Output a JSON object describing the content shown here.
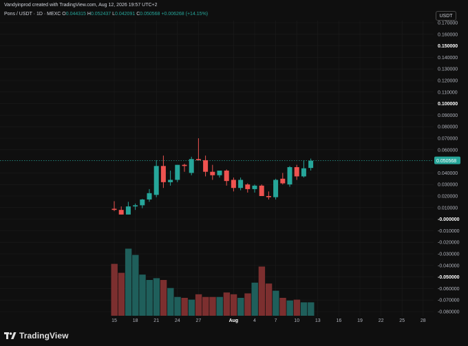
{
  "header": {
    "attribution": "Vandyinprod created with TradingView.com, Aug 12, 2026 19:57 UTC+2"
  },
  "legend": {
    "symbol": "Pons / USDT · 1D · MEXC",
    "o_label": "O",
    "o_value": "0.044315",
    "h_label": "H",
    "h_value": "0.052437",
    "l_label": "L",
    "l_value": "0.042091",
    "c_label": "C",
    "c_value": "0.050568",
    "change": "+0.006268 (+14.15%)"
  },
  "currency": "USDT",
  "colors": {
    "background": "#0f0f0f",
    "up": "#26a69a",
    "down": "#ef5350",
    "vol_up": "#1f5f5b",
    "vol_down": "#7c2f2f",
    "grid": "#1c1c1c",
    "price_line": "#26a69a",
    "axis_text": "#b2b5be"
  },
  "brand": {
    "name": "TradingView",
    "icon": "tradingview-logo-icon"
  },
  "chart_data": {
    "type": "candlestick",
    "ylim": [
      -0.08,
      0.17
    ],
    "y_ticks": [
      {
        "value": 0.17,
        "label": "0.170000",
        "bold": false
      },
      {
        "value": 0.16,
        "label": "0.160000",
        "bold": false
      },
      {
        "value": 0.15,
        "label": "0.150000",
        "bold": true
      },
      {
        "value": 0.14,
        "label": "0.140000",
        "bold": false
      },
      {
        "value": 0.13,
        "label": "0.130000",
        "bold": false
      },
      {
        "value": 0.12,
        "label": "0.120000",
        "bold": false
      },
      {
        "value": 0.11,
        "label": "0.110000",
        "bold": false
      },
      {
        "value": 0.1,
        "label": "0.100000",
        "bold": true
      },
      {
        "value": 0.09,
        "label": "0.090000",
        "bold": false
      },
      {
        "value": 0.08,
        "label": "0.080000",
        "bold": false
      },
      {
        "value": 0.07,
        "label": "0.070000",
        "bold": false
      },
      {
        "value": 0.06,
        "label": "0.060000",
        "bold": false
      },
      {
        "value": 0.04,
        "label": "0.040000",
        "bold": false
      },
      {
        "value": 0.03,
        "label": "0.030000",
        "bold": false
      },
      {
        "value": 0.02,
        "label": "0.020000",
        "bold": false
      },
      {
        "value": 0.01,
        "label": "0.010000",
        "bold": false
      },
      {
        "value": 0.0,
        "label": "-0.000000",
        "bold": true
      },
      {
        "value": -0.01,
        "label": "-0.010000",
        "bold": false
      },
      {
        "value": -0.02,
        "label": "-0.020000",
        "bold": false
      },
      {
        "value": -0.03,
        "label": "-0.030000",
        "bold": false
      },
      {
        "value": -0.04,
        "label": "-0.040000",
        "bold": false
      },
      {
        "value": -0.05,
        "label": "-0.050000",
        "bold": true
      },
      {
        "value": -0.06,
        "label": "-0.060000",
        "bold": false
      },
      {
        "value": -0.07,
        "label": "-0.070000",
        "bold": false
      },
      {
        "value": -0.08,
        "label": "-0.080000",
        "bold": false
      }
    ],
    "last_price": {
      "value": 0.050568,
      "label": "0.050568"
    },
    "x_ticks": [
      {
        "day": 0,
        "label": "15",
        "bold": false
      },
      {
        "day": 3,
        "label": "18",
        "bold": false
      },
      {
        "day": 6,
        "label": "21",
        "bold": false
      },
      {
        "day": 9,
        "label": "24",
        "bold": false
      },
      {
        "day": 12,
        "label": "27",
        "bold": false
      },
      {
        "day": 17,
        "label": "Aug",
        "bold": true
      },
      {
        "day": 20,
        "label": "4",
        "bold": false
      },
      {
        "day": 23,
        "label": "7",
        "bold": false
      },
      {
        "day": 26,
        "label": "10",
        "bold": false
      },
      {
        "day": 29,
        "label": "13",
        "bold": false
      },
      {
        "day": 32,
        "label": "16",
        "bold": false
      },
      {
        "day": 35,
        "label": "19",
        "bold": false
      },
      {
        "day": 38,
        "label": "22",
        "bold": false
      },
      {
        "day": 41,
        "label": "25",
        "bold": false
      },
      {
        "day": 44,
        "label": "28",
        "bold": false
      }
    ],
    "candles": [
      {
        "o": 0.009,
        "h": 0.0155,
        "l": 0.007,
        "c": 0.008
      },
      {
        "o": 0.008,
        "h": 0.011,
        "l": 0.004,
        "c": 0.004
      },
      {
        "o": 0.004,
        "h": 0.015,
        "l": 0.004,
        "c": 0.011
      },
      {
        "o": 0.011,
        "h": 0.0135,
        "l": 0.008,
        "c": 0.012
      },
      {
        "o": 0.012,
        "h": 0.0175,
        "l": 0.0095,
        "c": 0.017
      },
      {
        "o": 0.017,
        "h": 0.026,
        "l": 0.015,
        "c": 0.0225
      },
      {
        "o": 0.021,
        "h": 0.051,
        "l": 0.019,
        "c": 0.046
      },
      {
        "o": 0.046,
        "h": 0.055,
        "l": 0.027,
        "c": 0.032
      },
      {
        "o": 0.032,
        "h": 0.042,
        "l": 0.029,
        "c": 0.034
      },
      {
        "o": 0.034,
        "h": 0.045,
        "l": 0.032,
        "c": 0.047
      },
      {
        "o": 0.047,
        "h": 0.048,
        "l": 0.041,
        "c": 0.046
      },
      {
        "o": 0.04,
        "h": 0.054,
        "l": 0.038,
        "c": 0.052
      },
      {
        "o": 0.052,
        "h": 0.07,
        "l": 0.051,
        "c": 0.051
      },
      {
        "o": 0.051,
        "h": 0.055,
        "l": 0.037,
        "c": 0.041
      },
      {
        "o": 0.041,
        "h": 0.047,
        "l": 0.034,
        "c": 0.038
      },
      {
        "o": 0.038,
        "h": 0.04,
        "l": 0.036,
        "c": 0.042
      },
      {
        "o": 0.042,
        "h": 0.043,
        "l": 0.029,
        "c": 0.033
      },
      {
        "o": 0.034,
        "h": 0.036,
        "l": 0.024,
        "c": 0.027
      },
      {
        "o": 0.027,
        "h": 0.036,
        "l": 0.025,
        "c": 0.034
      },
      {
        "o": 0.03,
        "h": 0.031,
        "l": 0.023,
        "c": 0.026
      },
      {
        "o": 0.026,
        "h": 0.03,
        "l": 0.023,
        "c": 0.029
      },
      {
        "o": 0.029,
        "h": 0.03,
        "l": 0.02,
        "c": 0.02
      },
      {
        "o": 0.02,
        "h": 0.024,
        "l": 0.017,
        "c": 0.019
      },
      {
        "o": 0.019,
        "h": 0.035,
        "l": 0.017,
        "c": 0.034
      },
      {
        "o": 0.035,
        "h": 0.04,
        "l": 0.03,
        "c": 0.031
      },
      {
        "o": 0.03,
        "h": 0.046,
        "l": 0.028,
        "c": 0.045
      },
      {
        "o": 0.045,
        "h": 0.047,
        "l": 0.034,
        "c": 0.037
      },
      {
        "o": 0.037,
        "h": 0.051,
        "l": 0.036,
        "c": 0.044
      },
      {
        "o": 0.0443,
        "h": 0.0524,
        "l": 0.0421,
        "c": 0.0506
      }
    ],
    "volume_scale_max": 100,
    "volumes": [
      58,
      48,
      75,
      68,
      46,
      40,
      42,
      40,
      31,
      21,
      20,
      18,
      24,
      21,
      21,
      21,
      26,
      24,
      20,
      25,
      37,
      55,
      36,
      28,
      20,
      17,
      18,
      15,
      15
    ]
  }
}
